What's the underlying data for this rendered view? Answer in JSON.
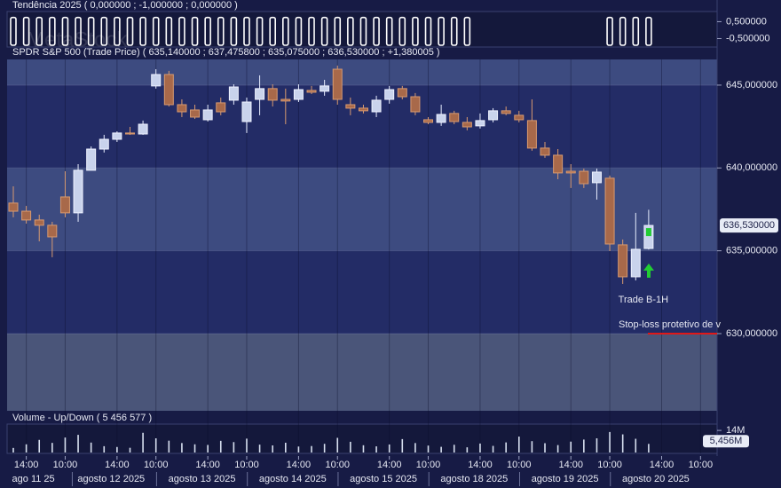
{
  "chart_data": [
    {
      "type": "bar",
      "title": "Tendência 2025  ( 0,000000 ; -1,000000 ; 0,000000 )",
      "values": [
        0.75,
        0.75,
        0.75,
        0.75,
        0.75,
        0.75,
        0.75,
        0.75,
        0.75,
        0.75,
        0.75,
        0.75,
        0.75,
        0.75,
        0.75,
        0.75,
        0.75,
        0.75,
        0.75,
        0.75,
        0.75,
        0.75,
        0.75,
        0.75,
        0.75,
        0.75,
        0.75,
        0.75,
        0.75,
        0.75,
        0.75,
        0.75,
        0.75,
        0.75,
        0.75,
        0.75,
        null,
        null,
        null,
        null,
        null,
        null,
        null,
        null,
        null,
        null,
        0.75,
        0.75,
        0.75,
        0.75
      ],
      "color": "#ffffff",
      "ylim": [
        -1.0,
        1.1
      ],
      "yticks": [
        {
          "value": 0.5,
          "label": "0,500000"
        },
        {
          "value": -0.5,
          "label": "-0,500000"
        }
      ]
    },
    {
      "type": "candlestick",
      "title": "SPDR S&P 500 (Trade Price)  ( 635,140000 ; 637,475800 ; 635,075000 ; 636,530000 ; +1,380005 )",
      "watermark": "MetaStock",
      "categories": [
        null,
        "14:00",
        null,
        null,
        "10:00",
        null,
        null,
        null,
        "14:00",
        null,
        null,
        "10:00",
        null,
        null,
        null,
        "14:00",
        null,
        null,
        "10:00",
        null,
        null,
        null,
        "14:00",
        null,
        null,
        "10:00",
        null,
        null,
        null,
        "14:00",
        null,
        null,
        "10:00",
        null,
        null,
        null,
        "14:00",
        null,
        null,
        "10:00",
        null,
        null,
        null,
        "14:00",
        null,
        null,
        "10:00",
        null,
        null,
        null,
        "14:00",
        null,
        null,
        "10:00",
        null
      ],
      "date_categories": [
        null,
        "ago 11 25",
        null,
        null,
        null,
        null,
        null,
        "agosto 12 2025",
        null,
        null,
        null,
        null,
        null,
        null,
        "agosto 13 2025",
        null,
        null,
        null,
        null,
        null,
        null,
        "agosto 14 2025",
        null,
        null,
        null,
        null,
        null,
        null,
        "agosto 15 2025",
        null,
        null,
        null,
        null,
        null,
        null,
        "agosto 18 2025",
        null,
        null,
        null,
        null,
        null,
        null,
        "agosto 19 2025",
        null,
        null,
        null,
        null,
        null,
        null,
        "agosto 20 2025",
        null,
        null,
        null,
        null,
        null
      ],
      "open": [
        637.88,
        637.39,
        636.86,
        636.54,
        638.25,
        637.29,
        639.86,
        641.14,
        641.73,
        642.11,
        642.05,
        644.95,
        645.64,
        643.82,
        643.5,
        642.91,
        643.93,
        644.09,
        642.8,
        644.14,
        644.79,
        644.14,
        644.14,
        644.68,
        644.63,
        645.96,
        643.82,
        643.61,
        643.39,
        644.14,
        644.79,
        644.3,
        642.91,
        642.75,
        643.29,
        642.75,
        642.54,
        642.91,
        643.45,
        643.18,
        642.86,
        641.2,
        640.77,
        639.8,
        639.8,
        639.11,
        639.38,
        635.36,
        633.43,
        635.14,
        null,
        null,
        null,
        null,
        null
      ],
      "high": [
        638.89,
        637.71,
        637.18,
        636.75,
        639.8,
        640.23,
        641.3,
        642.0,
        642.21,
        642.48,
        642.86,
        645.96,
        645.86,
        644.14,
        643.82,
        643.82,
        644.25,
        645.05,
        644.25,
        645.59,
        645.05,
        644.79,
        645.05,
        644.95,
        645.32,
        646.18,
        644.25,
        643.82,
        644.36,
        644.95,
        644.95,
        644.52,
        643.07,
        643.82,
        643.45,
        643.07,
        643.29,
        643.61,
        643.71,
        643.45,
        644.14,
        641.57,
        641.14,
        640.23,
        639.96,
        639.96,
        639.54,
        635.68,
        637.29,
        637.4758,
        null,
        null,
        null,
        null,
        null
      ],
      "low": [
        637.02,
        636.64,
        635.57,
        634.61,
        637.02,
        636.75,
        639.86,
        640.93,
        641.57,
        642.0,
        642.0,
        644.79,
        643.71,
        643.07,
        642.96,
        642.8,
        643.18,
        643.82,
        642.11,
        643.18,
        643.71,
        642.64,
        643.98,
        644.46,
        644.36,
        643.82,
        643.18,
        643.29,
        643.07,
        643.88,
        644.14,
        643.18,
        642.64,
        642.54,
        642.64,
        642.27,
        642.38,
        642.75,
        643.18,
        642.75,
        641.04,
        640.61,
        639.32,
        638.79,
        638.79,
        638.09,
        634.98,
        633.0,
        633.21,
        635.075,
        null,
        null,
        null,
        null,
        null
      ],
      "close": [
        637.39,
        636.86,
        636.54,
        635.84,
        637.29,
        639.86,
        641.14,
        641.73,
        642.11,
        642.05,
        642.64,
        645.64,
        643.82,
        643.39,
        643.07,
        643.5,
        643.39,
        644.89,
        643.98,
        644.79,
        644.09,
        644.04,
        644.73,
        644.57,
        644.95,
        644.14,
        643.61,
        643.45,
        644.09,
        644.73,
        644.3,
        643.39,
        642.75,
        643.23,
        642.8,
        642.48,
        642.86,
        643.45,
        643.29,
        642.91,
        641.2,
        640.77,
        639.7,
        639.7,
        639.05,
        639.75,
        635.41,
        633.43,
        635.09,
        636.53,
        null,
        null,
        null,
        null,
        null
      ],
      "up_color": "#c9d3ec",
      "down_color": "#a8694a",
      "ylim": [
        625.34,
        646.55
      ],
      "yticks": [
        {
          "value": 645,
          "label": "645,000000"
        },
        {
          "value": 640,
          "label": "640,000000"
        },
        {
          "value": 635,
          "label": "635,000000"
        },
        {
          "value": 630,
          "label": "630,000000"
        }
      ],
      "last_price_label": "636,530000",
      "annotation": "Trade B-1H",
      "stop_loss": {
        "label": "Stop-loss protetivo de v",
        "value": 630,
        "color": "#e01818"
      }
    },
    {
      "type": "volume",
      "title": "Volume - Up/Down  ( 5 456 577 )",
      "values": [
        2900000,
        5200000,
        8000000,
        6100000,
        9500000,
        11200000,
        6300000,
        4000000,
        3500000,
        3000000,
        12500000,
        9000000,
        7500000,
        6000000,
        5200000,
        4800000,
        7400000,
        6600000,
        8800000,
        5000000,
        4500000,
        6200000,
        3800000,
        4100000,
        5500000,
        9300000,
        6800000,
        4600000,
        3900000,
        5100000,
        8500000,
        6000000,
        4400000,
        3600000,
        4900000,
        3300000,
        5700000,
        4200000,
        6400000,
        10100000,
        7200000,
        5900000,
        4700000,
        6900000,
        8200000,
        9000000,
        13000000,
        11500000,
        8700000,
        5456577
      ],
      "color": "#d8e0f0",
      "last_value_label": "5,456M",
      "ylim": [
        0,
        18000000
      ],
      "yticks": [
        {
          "value": 14000000,
          "label": "14M"
        }
      ]
    }
  ]
}
